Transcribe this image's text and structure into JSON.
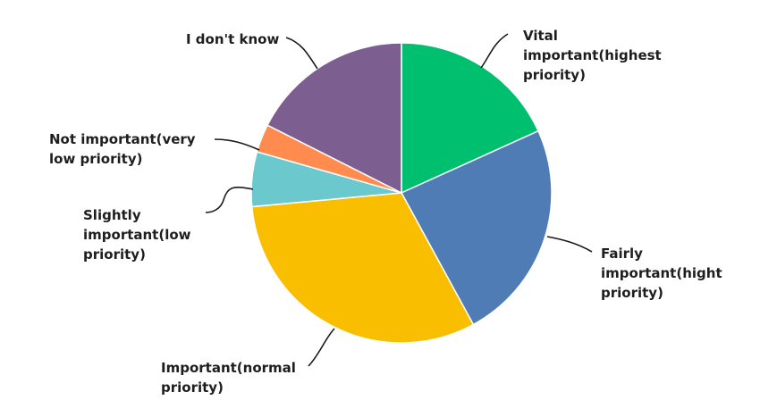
{
  "chart_data": {
    "type": "pie",
    "categories": [
      "Vital\nimportant(highest\npriority)",
      "Fairly\nimportant(hight\npriority)",
      "Important(normal\npriority)",
      "Slightly\nimportant(low\npriority)",
      "Not important(very\nlow priority)",
      "I don't know"
    ],
    "values": [
      18.6,
      24.3,
      32.1,
      6.0,
      3.1,
      17.9
    ],
    "colors": [
      "#00bf6f",
      "#507cb6",
      "#f9be00",
      "#6bc8cd",
      "#ff8b4f",
      "#7d5e90"
    ],
    "start_angle": "12 o'clock",
    "direction": "clockwise",
    "legend": "none"
  }
}
